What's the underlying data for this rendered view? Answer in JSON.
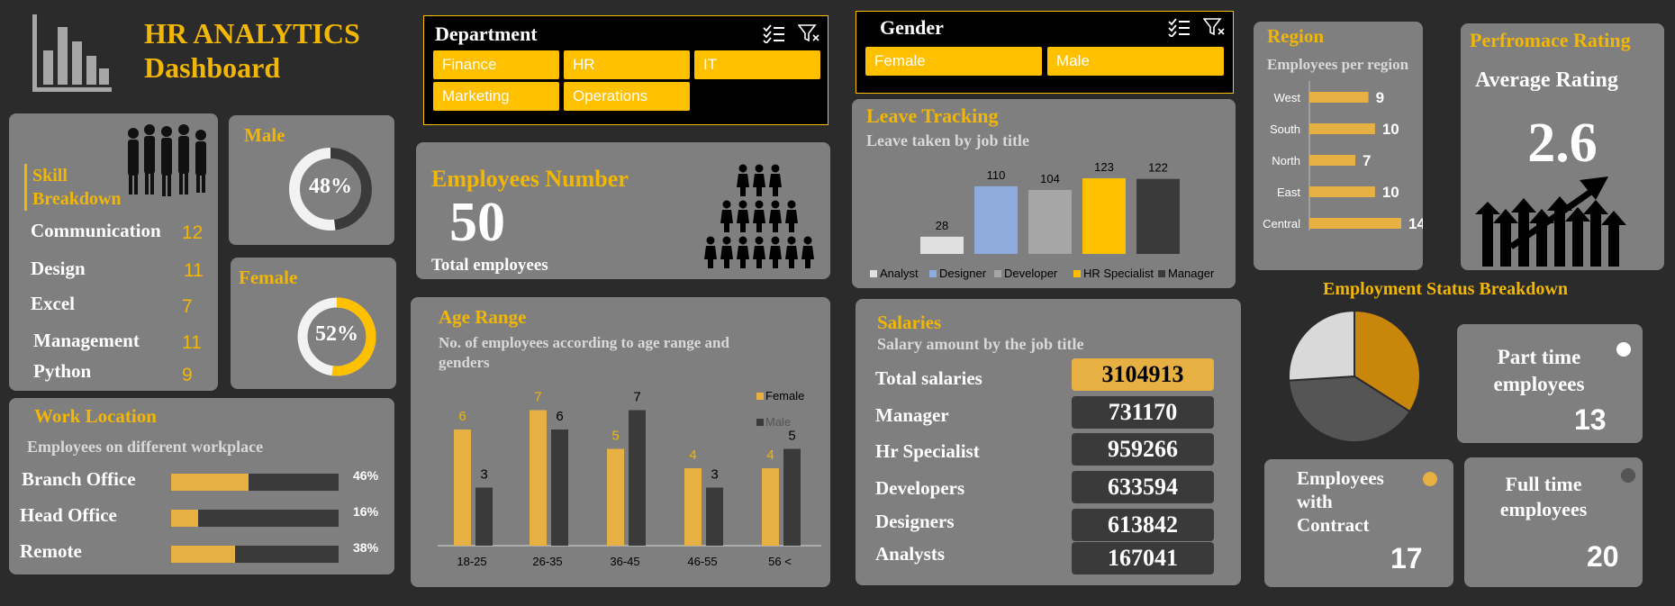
{
  "header": {
    "title_line1": "HR ANALYTICS",
    "title_line2": "Dashboard",
    "logo_icon": "bar-chart-icon"
  },
  "department": {
    "title": "Department",
    "items": [
      "Finance",
      "HR",
      "IT",
      "Marketing",
      "Operations"
    ]
  },
  "gender_slicer": {
    "title": "Gender",
    "items": [
      "Female",
      "Male"
    ]
  },
  "skills": {
    "title": "Skill Breakdown",
    "items": [
      {
        "label": "Communication",
        "value": "12"
      },
      {
        "label": "Design",
        "value": "11"
      },
      {
        "label": "Excel",
        "value": "7"
      },
      {
        "label": "Management",
        "value": "11"
      },
      {
        "label": "Python",
        "value": "9"
      }
    ]
  },
  "male": {
    "title": "Male",
    "percent": "48%",
    "fraction": 0.48
  },
  "female": {
    "title": "Female",
    "percent": "52%",
    "fraction": 0.52
  },
  "employees": {
    "title": "Employees Number",
    "value": "50",
    "caption": "Total employees"
  },
  "leave": {
    "title": "Leave Tracking",
    "subtitle": "Leave taken by job title",
    "chart_data": {
      "type": "bar",
      "categories": [
        "Analyst",
        "Designer",
        "Developer",
        "HR Specialist",
        "Manager"
      ],
      "values": [
        28,
        110,
        104,
        123,
        122
      ],
      "colors": [
        "#e0e0e0",
        "#8faadc",
        "#a6a6a6",
        "#ffc000",
        "#3a3a3a"
      ]
    }
  },
  "region": {
    "title": "Region",
    "subtitle": "Employees per region",
    "chart_data": {
      "type": "bar",
      "categories": [
        "West",
        "South",
        "North",
        "East",
        "Central"
      ],
      "values": [
        9,
        10,
        7,
        10,
        14
      ]
    }
  },
  "rating": {
    "title": "Perfromace Rating",
    "subtitle": "Average Rating",
    "value": "2.6"
  },
  "work": {
    "title": "Work Location",
    "subtitle": "Employees on different workplace",
    "items": [
      {
        "label": "Branch Office",
        "percent": "46%",
        "fraction": 0.46
      },
      {
        "label": "Head Office",
        "percent": "16%",
        "fraction": 0.16
      },
      {
        "label": "Remote",
        "percent": "38%",
        "fraction": 0.38
      }
    ]
  },
  "age": {
    "title": "Age Range",
    "subtitle_line1": "No. of employees according to age range and",
    "subtitle_line2": "genders",
    "chart_data": {
      "type": "bar",
      "categories": [
        "18-25",
        "26-35",
        "36-45",
        "46-55",
        "56 <"
      ],
      "series": [
        {
          "name": "Female",
          "values": [
            6,
            7,
            5,
            4,
            4
          ],
          "color": "#e6b043"
        },
        {
          "name": "Male",
          "values": [
            3,
            6,
            7,
            3,
            5
          ],
          "color": "#3a3a3a"
        }
      ],
      "ylim": [
        0,
        8
      ],
      "legend": "top-right"
    }
  },
  "salaries": {
    "title": "Salaries",
    "subtitle": "Salary amount by the job title",
    "items": [
      {
        "label": "Total salaries",
        "value": "3104913"
      },
      {
        "label": "Manager",
        "value": "731170"
      },
      {
        "label": "Hr Specialist",
        "value": "959266"
      },
      {
        "label": "Developers",
        "value": "633594"
      },
      {
        "label": "Designers",
        "value": "613842"
      },
      {
        "label": "Analysts",
        "value": "167041"
      }
    ]
  },
  "status": {
    "title": "Employment Status Breakdown",
    "chart_data": {
      "type": "pie",
      "categories": [
        "Contract",
        "Full time",
        "Part time"
      ],
      "values": [
        17,
        20,
        13
      ],
      "colors": [
        "#c8860a",
        "#555555",
        "#d9d9d9"
      ]
    },
    "part_time": {
      "line1": "Part  time",
      "line2": "employees",
      "value": "13"
    },
    "contract": {
      "line1": "Employees",
      "line2": "with",
      "line3": "Contract",
      "value": "17"
    },
    "full_time": {
      "line1": "Full  time",
      "line2": "employees",
      "value": "20"
    }
  }
}
